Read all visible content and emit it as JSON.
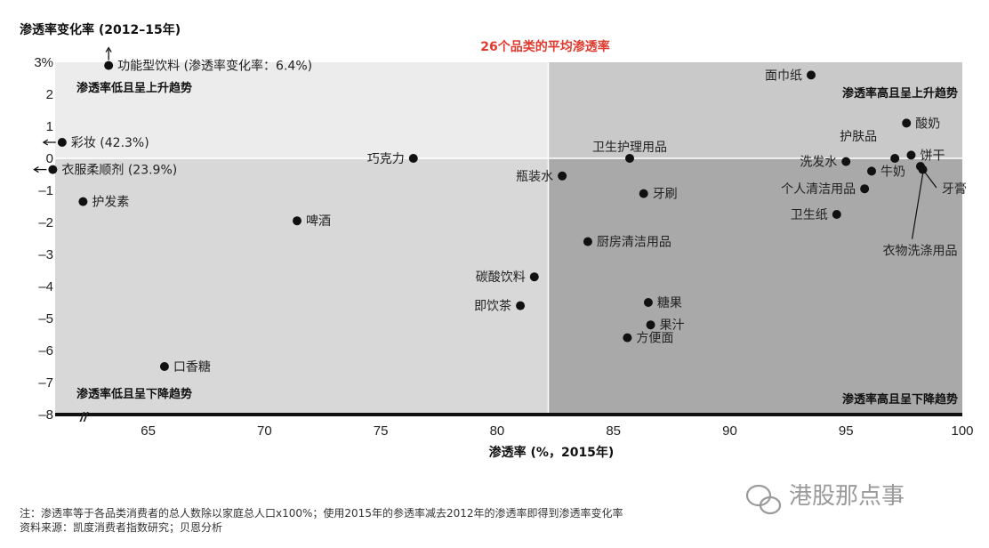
{
  "chart_data": {
    "type": "scatter",
    "title": "26个品类的平均渗透率",
    "xlabel": "渗透率 (%，2015年)",
    "ylabel": "渗透率变化率 (2012–15年)",
    "xlim": [
      61,
      100
    ],
    "ylim": [
      -8,
      3
    ],
    "average_x": 82.2,
    "xticks": [
      "65",
      "70",
      "75",
      "80",
      "85",
      "90",
      "95",
      "100"
    ],
    "yticks": [
      "3%",
      "2",
      "1",
      "0",
      "–1",
      "–2",
      "–3",
      "–4",
      "–5",
      "–6",
      "–7",
      "–8"
    ],
    "axis_break": "//",
    "quadrants": {
      "top_left": "渗透率低且呈上升趋势",
      "top_right": "渗透率高且呈上升趋势",
      "bottom_left": "渗透率低且呈下降趋势",
      "bottom_right": "渗透率高且呈下降趋势"
    },
    "points": [
      {
        "label": "功能型饮料 (渗透率变化率：6.4%)",
        "x": 63.3,
        "y": 2.9,
        "offscale": "up",
        "label_pos": "right"
      },
      {
        "label": "彩妆 (42.3%)",
        "x": 61.3,
        "y": 0.5,
        "offscale": "left",
        "label_pos": "right"
      },
      {
        "label": "衣服柔顺剂 (23.9%)",
        "x": 60.9,
        "y": -0.35,
        "offscale": "left",
        "label_pos": "right"
      },
      {
        "label": "护发素",
        "x": 62.2,
        "y": -1.35,
        "label_pos": "right"
      },
      {
        "label": "巧克力",
        "x": 76.4,
        "y": 0.0,
        "label_pos": "left"
      },
      {
        "label": "啤酒",
        "x": 71.4,
        "y": -1.95,
        "label_pos": "right"
      },
      {
        "label": "口香糖",
        "x": 65.7,
        "y": -6.5,
        "label_pos": "right"
      },
      {
        "label": "碳酸饮料",
        "x": 81.6,
        "y": -3.7,
        "label_pos": "left"
      },
      {
        "label": "即饮茶",
        "x": 81.0,
        "y": -4.6,
        "label_pos": "left"
      },
      {
        "label": "瓶装水",
        "x": 82.8,
        "y": -0.55,
        "label_pos": "left"
      },
      {
        "label": "卫生护理用品",
        "x": 85.7,
        "y": 0.0,
        "label_pos": "above"
      },
      {
        "label": "厨房清洁用品",
        "x": 83.9,
        "y": -2.6,
        "label_pos": "right"
      },
      {
        "label": "牙刷",
        "x": 86.3,
        "y": -1.1,
        "label_pos": "right"
      },
      {
        "label": "糖果",
        "x": 86.5,
        "y": -4.5,
        "label_pos": "right"
      },
      {
        "label": "果汁",
        "x": 86.6,
        "y": -5.2,
        "label_pos": "right"
      },
      {
        "label": "方便面",
        "x": 85.6,
        "y": -5.6,
        "label_pos": "right"
      },
      {
        "label": "面巾纸",
        "x": 93.5,
        "y": 2.6,
        "label_pos": "left"
      },
      {
        "label": "酸奶",
        "x": 97.6,
        "y": 1.1,
        "label_pos": "right"
      },
      {
        "label": "护肤品",
        "x": 97.1,
        "y": 0.0,
        "label_pos": "above-left"
      },
      {
        "label": "洗发水",
        "x": 95.0,
        "y": -0.1,
        "label_pos": "left"
      },
      {
        "label": "饼干",
        "x": 97.8,
        "y": 0.1,
        "label_pos": "right"
      },
      {
        "label": "牛奶",
        "x": 96.1,
        "y": -0.4,
        "label_pos": "right"
      },
      {
        "label": "个人清洁用品",
        "x": 95.8,
        "y": -0.95,
        "label_pos": "left"
      },
      {
        "label": "卫生纸",
        "x": 94.6,
        "y": -1.75,
        "label_pos": "left"
      },
      {
        "label": "牙膏",
        "x": 98.2,
        "y": -0.25,
        "label_pos": "below-right"
      },
      {
        "label": "衣物洗涤用品",
        "x": 98.3,
        "y": -0.35,
        "label_pos": "below"
      }
    ]
  },
  "notes": {
    "line1": "注：渗透率等于各品类消费者的总人数除以家庭总人口x100%；使用2015年的参透率减去2012年的渗透率即得到渗透率变化率",
    "line2": "资料来源：凯度消费者指数研究；贝恩分析"
  },
  "watermark": "港股那点事",
  "colors": {
    "avg_title": "#e03a2e",
    "bg_top_left": "#ececec",
    "bg_top_right": "#c9c9c9",
    "bg_bottom_left": "#d8d8d8",
    "bg_bottom_right": "#a9a9a9"
  }
}
